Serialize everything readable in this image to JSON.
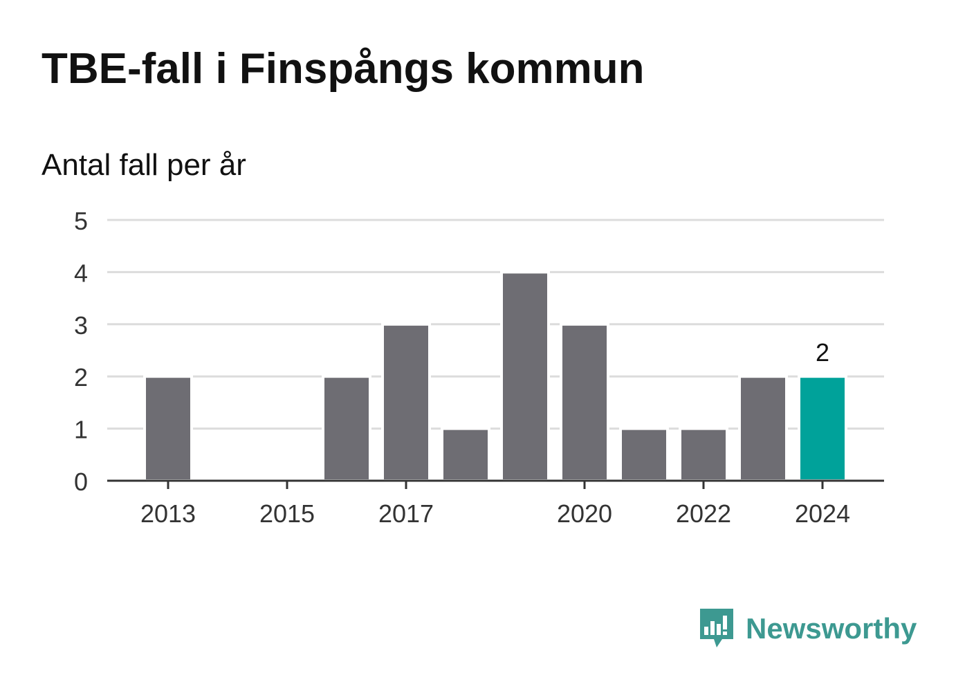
{
  "title": "TBE-fall i Finspångs kommun",
  "subtitle": "Antal fall per år",
  "chart_data": {
    "type": "bar",
    "categories": [
      "2013",
      "2014",
      "2015",
      "2016",
      "2017",
      "2018",
      "2019",
      "2020",
      "2021",
      "2022",
      "2023",
      "2024"
    ],
    "values": [
      2,
      0,
      0,
      2,
      3,
      1,
      4,
      3,
      1,
      1,
      2,
      2
    ],
    "x_tick_labels": [
      "2013",
      "2015",
      "2017",
      "2020",
      "2022",
      "2024"
    ],
    "y_ticks": [
      "0",
      "1",
      "2",
      "3",
      "4",
      "5"
    ],
    "ylim": [
      0,
      5
    ],
    "grid": true,
    "highlight_index": 11,
    "highlight_label": "2",
    "colors": {
      "bar": "#6e6d73",
      "highlight": "#00a29a",
      "grid": "#dcdcdc",
      "axis": "#333333"
    }
  },
  "brand": {
    "name": "Newsworthy",
    "icon": "newsworthy-logo-icon",
    "color": "#3d9991"
  }
}
